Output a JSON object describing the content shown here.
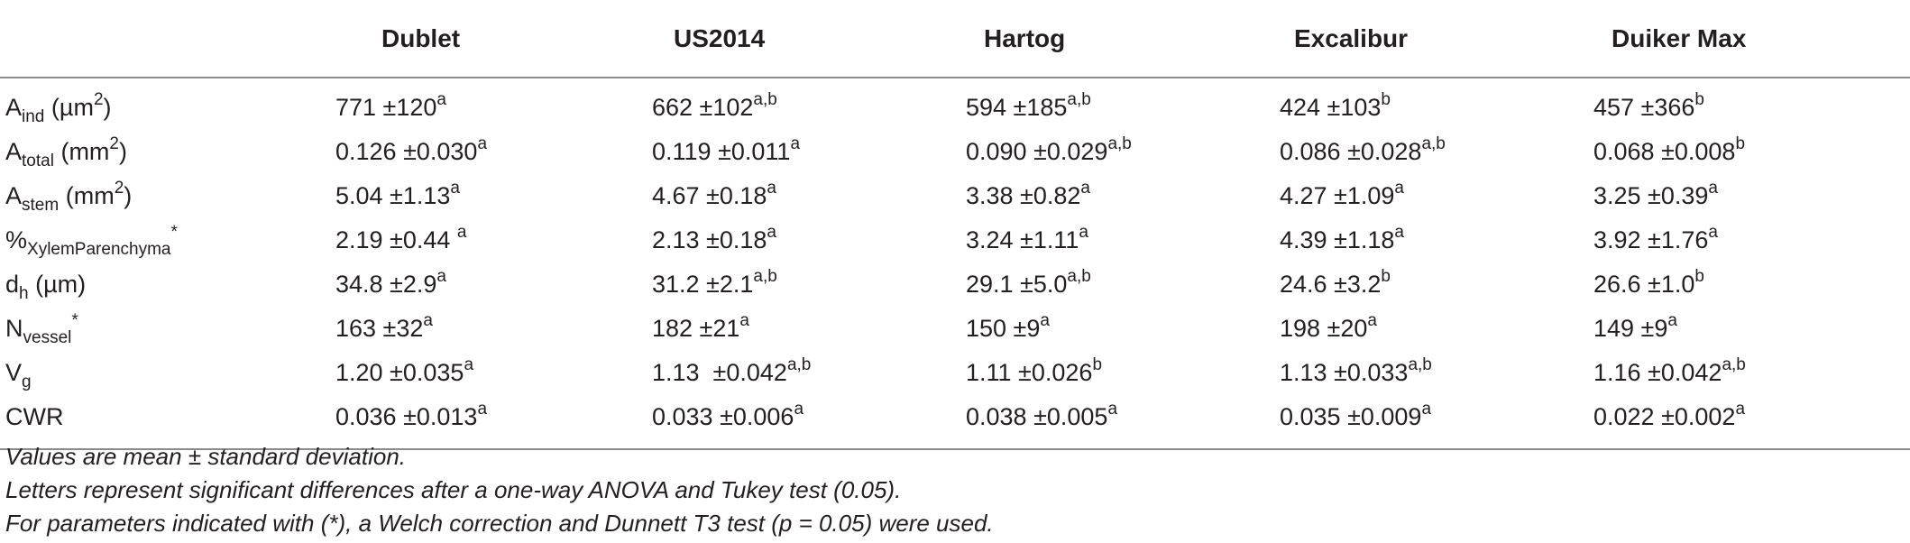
{
  "table": {
    "columns": [
      "",
      "Dublet",
      "US2014",
      "Hartog",
      "Excalibur",
      "Duiker Max"
    ],
    "rows": [
      {
        "param": {
          "base": "A",
          "sub": "ind",
          "rest": " (",
          "mu": "µ",
          "unit": "m",
          "sup": "2",
          "close": ")",
          "star": ""
        },
        "cells": [
          {
            "value": "771 ±120",
            "sup": "a"
          },
          {
            "value": "662 ±102",
            "sup": "a,b"
          },
          {
            "value": "594 ±185",
            "sup": "a,b"
          },
          {
            "value": "424 ±103",
            "sup": "b"
          },
          {
            "value": "457 ±366",
            "sup": "b"
          }
        ]
      },
      {
        "param": {
          "base": "A",
          "sub": "total",
          "rest": " (",
          "mu": "",
          "unit": "mm",
          "sup": "2",
          "close": ")",
          "star": ""
        },
        "cells": [
          {
            "value": "0.126 ±0.030",
            "sup": "a"
          },
          {
            "value": "0.119 ±0.011",
            "sup": "a"
          },
          {
            "value": "0.090 ±0.029",
            "sup": "a,b"
          },
          {
            "value": "0.086 ±0.028",
            "sup": "a,b"
          },
          {
            "value": "0.068 ±0.008",
            "sup": "b"
          }
        ]
      },
      {
        "param": {
          "base": "A",
          "sub": "stem",
          "rest": " (",
          "mu": "",
          "unit": "mm",
          "sup": "2",
          "close": ")",
          "star": ""
        },
        "cells": [
          {
            "value": "5.04 ±1.13",
            "sup": "a"
          },
          {
            "value": "4.67 ±0.18",
            "sup": "a"
          },
          {
            "value": "3.38 ±0.82",
            "sup": "a"
          },
          {
            "value": "4.27 ±1.09",
            "sup": "a"
          },
          {
            "value": "3.25 ±0.39",
            "sup": "a"
          }
        ]
      },
      {
        "param": {
          "base": "%",
          "sub": "XylemParenchyma",
          "rest": "",
          "mu": "",
          "unit": "",
          "sup": "",
          "close": "",
          "star": "*"
        },
        "cells": [
          {
            "value": "2.19 ±0.44 ",
            "sup": "a"
          },
          {
            "value": "2.13 ±0.18",
            "sup": "a"
          },
          {
            "value": "3.24 ±1.11",
            "sup": "a"
          },
          {
            "value": "4.39 ±1.18",
            "sup": "a"
          },
          {
            "value": "3.92 ±1.76",
            "sup": "a"
          }
        ]
      },
      {
        "param": {
          "base": "d",
          "sub": "h",
          "rest": " (",
          "mu": "µ",
          "unit": "m",
          "sup": "",
          "close": ")",
          "star": ""
        },
        "cells": [
          {
            "value": "34.8 ±2.9",
            "sup": "a"
          },
          {
            "value": "31.2 ±2.1",
            "sup": "a,b"
          },
          {
            "value": "29.1 ±5.0",
            "sup": "a,b"
          },
          {
            "value": "24.6 ±3.2",
            "sup": "b"
          },
          {
            "value": "26.6 ±1.0",
            "sup": "b"
          }
        ]
      },
      {
        "param": {
          "base": "N",
          "sub": "vessel",
          "rest": "",
          "mu": "",
          "unit": "",
          "sup": "",
          "close": "",
          "star": "*"
        },
        "cells": [
          {
            "value": "163 ±32",
            "sup": "a"
          },
          {
            "value": "182 ±21",
            "sup": "a"
          },
          {
            "value": "150 ±9",
            "sup": "a"
          },
          {
            "value": "198 ±20",
            "sup": "a"
          },
          {
            "value": "149 ±9",
            "sup": "a"
          }
        ]
      },
      {
        "param": {
          "base": "V",
          "sub": "g",
          "rest": "",
          "mu": "",
          "unit": "",
          "sup": "",
          "close": "",
          "star": ""
        },
        "cells": [
          {
            "value": "1.20 ±0.035",
            "sup": "a"
          },
          {
            "value": "1.13  ±0.042",
            "sup": "a,b"
          },
          {
            "value": "1.11 ±0.026",
            "sup": "b"
          },
          {
            "value": "1.13 ±0.033",
            "sup": "a,b"
          },
          {
            "value": "1.16 ±0.042",
            "sup": "a,b"
          }
        ]
      },
      {
        "param": {
          "base": "CWR",
          "sub": "",
          "rest": "",
          "mu": "",
          "unit": "",
          "sup": "",
          "close": "",
          "star": ""
        },
        "cells": [
          {
            "value": "0.036 ±0.013",
            "sup": "a"
          },
          {
            "value": "0.033 ±0.006",
            "sup": "a"
          },
          {
            "value": "0.038 ±0.005",
            "sup": "a"
          },
          {
            "value": "0.035 ±0.009",
            "sup": "a"
          },
          {
            "value": "0.022 ±0.002",
            "sup": "a"
          }
        ]
      }
    ]
  },
  "footnotes": [
    "Values are mean ± standard deviation.",
    "Letters represent significant differences after a one-way ANOVA and Tukey test (0.05).",
    "For parameters indicated with (*), a Welch correction and Dunnett T3 test (p = 0.05) were used."
  ]
}
